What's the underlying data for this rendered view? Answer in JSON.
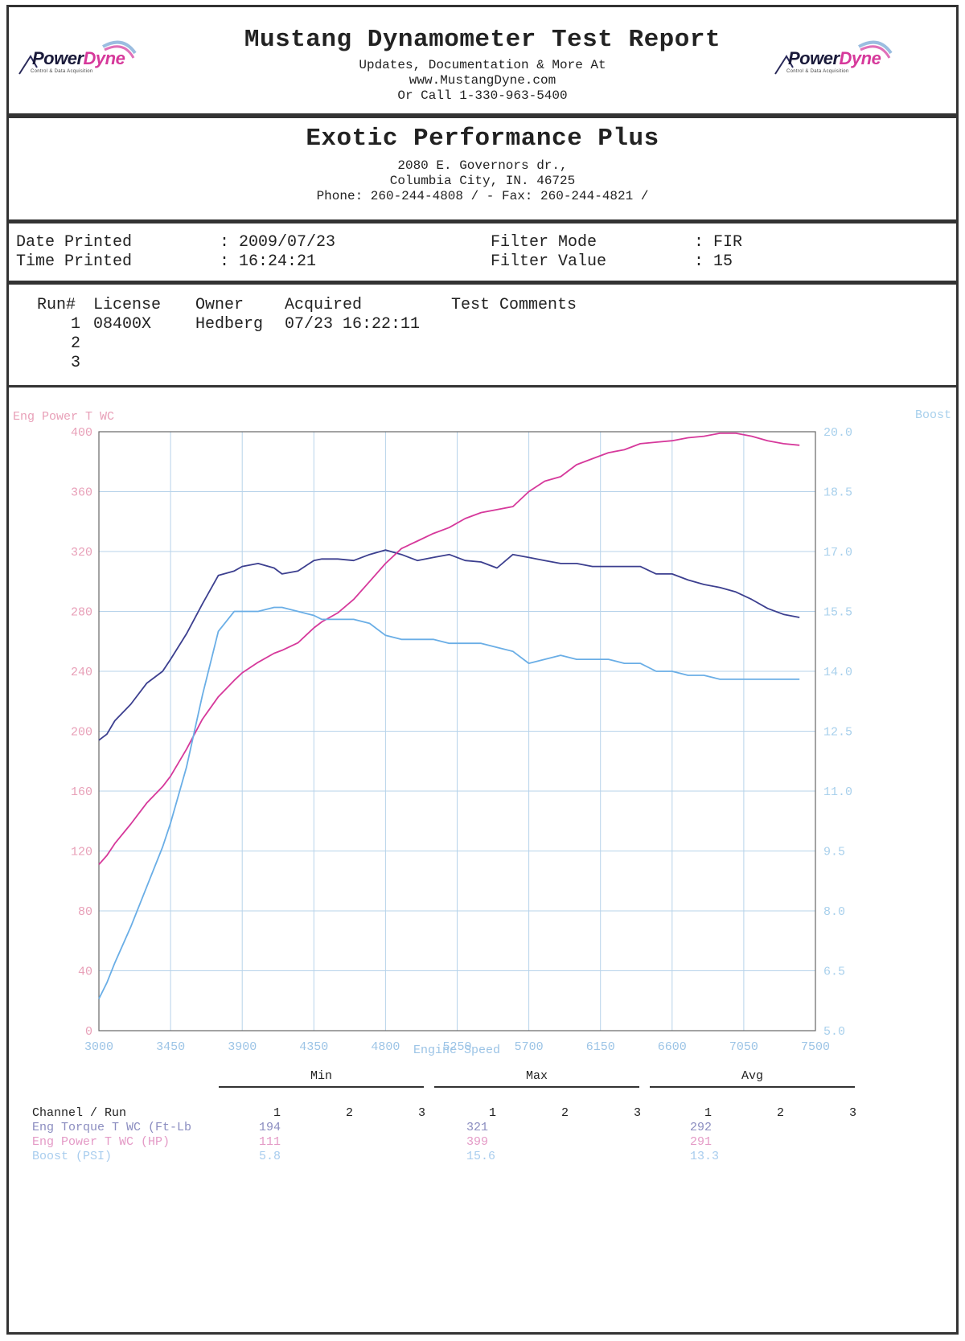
{
  "header": {
    "title": "Mustang Dynamometer Test Report",
    "line1": "Updates, Documentation & More At",
    "line2": "www.MustangDyne.com",
    "line3": "Or Call 1-330-963-5400",
    "logo_left": {
      "word1": "Power",
      "word2": "Dyne",
      "tagline": "Control & Data Acquisition"
    },
    "logo_right": {
      "word1": "Power",
      "word2": "Dyne",
      "tagline": "Control & Data Acquisition"
    }
  },
  "shop": {
    "name": "Exotic Performance Plus",
    "address1": "2080 E. Governors dr.,",
    "address2": "Columbia City, IN.  46725",
    "phone": "Phone: 260-244-4808 /  - Fax: 260-244-4821 /"
  },
  "meta": {
    "date_label": "Date Printed",
    "date_value": ": 2009/07/23",
    "time_label": "Time Printed",
    "time_value": ": 16:24:21",
    "filter_mode_label": "Filter Mode",
    "filter_mode_value": ": FIR",
    "filter_value_label": "Filter Value",
    "filter_value_value": ": 15"
  },
  "runs": {
    "headers": {
      "run": "Run#",
      "license": "License",
      "owner": "Owner",
      "acquired": "Acquired",
      "comments": "Test Comments"
    },
    "rows": [
      {
        "run": "1",
        "license": "08400X",
        "owner": "Hedberg",
        "acquired": "07/23 16:22:11"
      },
      {
        "run": "2",
        "license": "",
        "owner": "",
        "acquired": ""
      },
      {
        "run": "3",
        "license": "",
        "owner": "",
        "acquired": ""
      }
    ]
  },
  "colors": {
    "torque": "#3c3f8f",
    "power": "#d6399b",
    "boost": "#6aaee6",
    "left_axis": "#e8a0b8",
    "right_axis": "#a8d0ec",
    "grid": "#b7d3ea"
  },
  "chart_data": {
    "type": "line",
    "left_axis_title": "Eng Power T WC",
    "right_axis_title": "Boost",
    "xlabel": "Engine Speed",
    "xlim": [
      3000,
      7500
    ],
    "x_ticks": [
      "3000",
      "3450",
      "3900",
      "4350",
      "4800",
      "5250",
      "5700",
      "6150",
      "6600",
      "7050",
      "7500"
    ],
    "ylim_left": [
      0,
      400
    ],
    "y_ticks_left": [
      "0",
      "40",
      "80",
      "120",
      "160",
      "200",
      "240",
      "280",
      "320",
      "360",
      "400"
    ],
    "ylim_right": [
      5.0,
      20.0
    ],
    "y_ticks_right": [
      "5.0",
      "6.5",
      "8.0",
      "9.5",
      "11.0",
      "12.5",
      "14.0",
      "15.5",
      "17.0",
      "18.5",
      "20.0"
    ],
    "grid": true,
    "series": [
      {
        "name": "Eng Torque T WC (Ft-Lb",
        "axis": "left",
        "x": [
          3000,
          3050,
          3100,
          3200,
          3300,
          3400,
          3450,
          3550,
          3650,
          3750,
          3850,
          3900,
          4000,
          4100,
          4150,
          4250,
          4350,
          4400,
          4500,
          4600,
          4700,
          4800,
          4900,
          5000,
          5100,
          5200,
          5300,
          5400,
          5500,
          5600,
          5700,
          5800,
          5900,
          6000,
          6100,
          6200,
          6300,
          6400,
          6500,
          6600,
          6700,
          6800,
          6900,
          7000,
          7100,
          7200,
          7300,
          7400
        ],
        "y": [
          194,
          198,
          207,
          218,
          232,
          240,
          248,
          265,
          285,
          304,
          307,
          310,
          312,
          309,
          305,
          307,
          314,
          315,
          315,
          314,
          318,
          321,
          318,
          314,
          316,
          318,
          314,
          313,
          309,
          318,
          316,
          314,
          312,
          312,
          310,
          310,
          310,
          310,
          305,
          305,
          301,
          298,
          296,
          293,
          288,
          282,
          278,
          276
        ]
      },
      {
        "name": "Eng Power T WC (HP)",
        "axis": "left",
        "x": [
          3000,
          3050,
          3100,
          3200,
          3300,
          3400,
          3450,
          3550,
          3650,
          3750,
          3850,
          3900,
          4000,
          4100,
          4150,
          4250,
          4350,
          4400,
          4500,
          4600,
          4700,
          4800,
          4900,
          5000,
          5100,
          5200,
          5300,
          5400,
          5500,
          5600,
          5700,
          5800,
          5900,
          6000,
          6100,
          6200,
          6300,
          6400,
          6500,
          6600,
          6700,
          6800,
          6900,
          7000,
          7100,
          7200,
          7300,
          7400
        ],
        "y": [
          111,
          117,
          125,
          138,
          152,
          163,
          170,
          188,
          208,
          223,
          234,
          239,
          246,
          252,
          254,
          259,
          269,
          273,
          279,
          288,
          300,
          312,
          322,
          327,
          332,
          336,
          342,
          346,
          348,
          350,
          360,
          367,
          370,
          378,
          382,
          386,
          388,
          392,
          393,
          394,
          396,
          397,
          399,
          399,
          397,
          394,
          392,
          391
        ]
      },
      {
        "name": "Boost (PSI)",
        "axis": "right",
        "x": [
          3000,
          3050,
          3100,
          3200,
          3300,
          3400,
          3450,
          3550,
          3650,
          3750,
          3850,
          3900,
          4000,
          4100,
          4150,
          4250,
          4350,
          4400,
          4500,
          4600,
          4700,
          4800,
          4900,
          5000,
          5100,
          5200,
          5300,
          5400,
          5500,
          5600,
          5700,
          5800,
          5900,
          6000,
          6100,
          6200,
          6300,
          6400,
          6500,
          6600,
          6700,
          6800,
          6900,
          7000,
          7100,
          7200,
          7300,
          7400
        ],
        "y": [
          5.8,
          6.2,
          6.7,
          7.6,
          8.6,
          9.6,
          10.2,
          11.6,
          13.4,
          15.0,
          15.5,
          15.5,
          15.5,
          15.6,
          15.6,
          15.5,
          15.4,
          15.3,
          15.3,
          15.3,
          15.2,
          14.9,
          14.8,
          14.8,
          14.8,
          14.7,
          14.7,
          14.7,
          14.6,
          14.5,
          14.2,
          14.3,
          14.4,
          14.3,
          14.3,
          14.3,
          14.2,
          14.2,
          14.0,
          14.0,
          13.9,
          13.9,
          13.8,
          13.8,
          13.8,
          13.8,
          13.8,
          13.8
        ]
      }
    ]
  },
  "summary": {
    "groups": [
      "Min",
      "Max",
      "Avg"
    ],
    "channel_header": "Channel / Run",
    "run_cols": [
      "1",
      "2",
      "3"
    ],
    "rows": [
      {
        "channel": "Eng Torque T WC (Ft-Lb",
        "min": "194",
        "max": "321",
        "avg": "292"
      },
      {
        "channel": "Eng Power T WC (HP)",
        "min": "111",
        "max": "399",
        "avg": "291"
      },
      {
        "channel": "Boost (PSI)",
        "min": "5.8",
        "max": "15.6",
        "avg": "13.3"
      }
    ]
  }
}
